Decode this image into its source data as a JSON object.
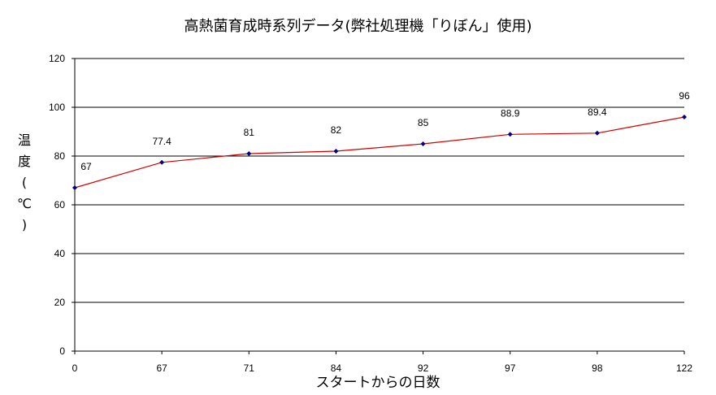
{
  "chart_data": {
    "type": "line",
    "title": "高熱菌育成時系列データ(弊社処理機「りぼん」使用)",
    "xlabel": "スタートからの日数",
    "ylabel_chars": [
      "温",
      "度",
      "(",
      "℃",
      ")"
    ],
    "categories": [
      "0",
      "67",
      "71",
      "84",
      "92",
      "97",
      "98",
      "122"
    ],
    "values": [
      67,
      77.4,
      81,
      82,
      85,
      88.9,
      89.4,
      96
    ],
    "data_labels": [
      "67",
      "77.4",
      "81",
      "82",
      "85",
      "88.9",
      "89.4",
      "96"
    ],
    "ylim": [
      0,
      120
    ],
    "yticks": [
      "0",
      "20",
      "40",
      "60",
      "80",
      "100",
      "120"
    ],
    "grid": true,
    "line_color": "#d00000",
    "marker_color": "#000080"
  }
}
